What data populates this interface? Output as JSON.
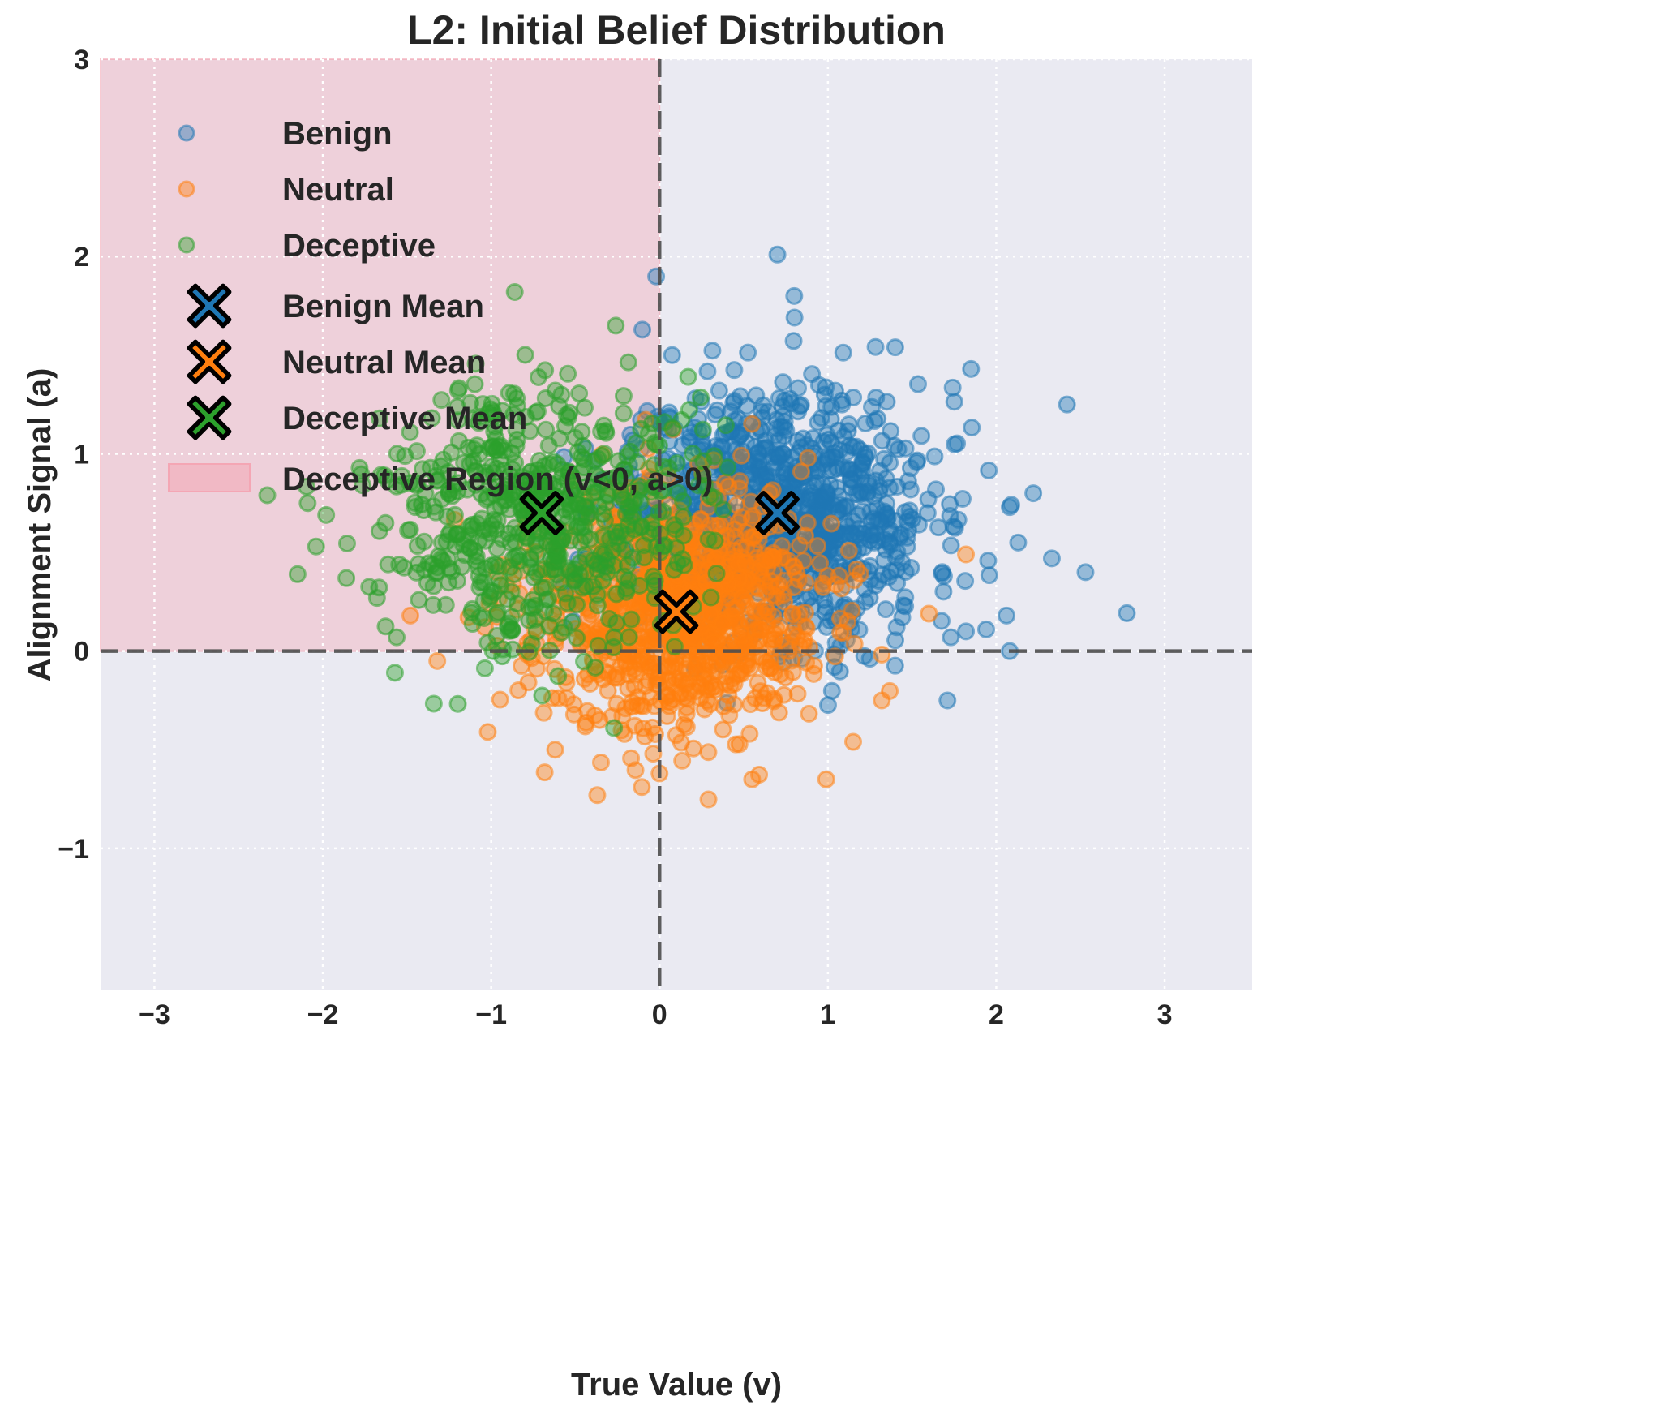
{
  "chart_data": {
    "type": "scatter",
    "title": "L2: Initial Belief Distribution",
    "xlabel": "True Value (v)",
    "ylabel": "Alignment Signal (a)",
    "xlim": [
      -3.32,
      3.52
    ],
    "ylim": [
      -1.72,
      3.0
    ],
    "xticks": [
      -3,
      -2,
      -1,
      0,
      1,
      2,
      3
    ],
    "xtick_labels": [
      "−3",
      "−2",
      "−1",
      "0",
      "1",
      "2",
      "3"
    ],
    "yticks": [
      -1,
      0,
      1,
      2,
      3
    ],
    "ytick_labels": [
      "−1",
      "0",
      "1",
      "2",
      "3"
    ],
    "grid": true,
    "legend_position": "top-left",
    "reference_lines": [
      {
        "axis": "x",
        "value": 0,
        "style": "dashed"
      },
      {
        "axis": "y",
        "value": 0,
        "style": "dashed"
      }
    ],
    "shaded_region": {
      "label": "Deceptive Region (v<0, a>0)",
      "x_range": [
        -3.32,
        0
      ],
      "y_range": [
        0,
        3.0
      ],
      "color": "#f4a6b4"
    },
    "series": [
      {
        "name": "Benign",
        "color": "#1f77b4",
        "count": 1000,
        "center": [
          0.7,
          0.7
        ],
        "spread": [
          0.45,
          0.32
        ],
        "seed": 11,
        "outliers": [
          [
            0.7,
            2.01
          ],
          [
            0.8,
            1.8
          ],
          [
            1.4,
            1.54
          ],
          [
            1.85,
            1.43
          ],
          [
            2.42,
            1.25
          ],
          [
            2.53,
            0.4
          ],
          [
            2.33,
            0.47
          ],
          [
            2.08,
            0.73
          ],
          [
            2.22,
            0.8
          ],
          [
            2.13,
            0.55
          ],
          [
            1.94,
            0.11
          ],
          [
            2.08,
            0.0
          ],
          [
            1.71,
            -0.25
          ],
          [
            1.82,
            0.1
          ],
          [
            1.73,
            0.07
          ]
        ]
      },
      {
        "name": "Neutral",
        "color": "#ff7f0e",
        "count": 1000,
        "center": [
          0.1,
          0.2
        ],
        "spread": [
          0.42,
          0.3
        ],
        "seed": 23,
        "outliers": [
          [
            -0.37,
            -0.73
          ],
          [
            0.55,
            -0.65
          ],
          [
            0.99,
            -0.65
          ],
          [
            -0.62,
            -0.5
          ],
          [
            0.0,
            -0.62
          ],
          [
            1.15,
            -0.46
          ],
          [
            -1.02,
            -0.41
          ],
          [
            1.82,
            0.49
          ],
          [
            1.6,
            0.19
          ],
          [
            1.32,
            -0.25
          ],
          [
            -1.32,
            -0.05
          ],
          [
            -1.48,
            0.18
          ]
        ]
      },
      {
        "name": "Deceptive",
        "color": "#2ca02c",
        "count": 600,
        "center": [
          -0.7,
          0.7
        ],
        "spread": [
          0.45,
          0.33
        ],
        "seed": 37,
        "outliers": [
          [
            -0.86,
            1.82
          ],
          [
            -0.26,
            1.65
          ],
          [
            -2.33,
            0.79
          ],
          [
            -2.09,
            0.75
          ],
          [
            -1.98,
            0.69
          ],
          [
            -2.15,
            0.39
          ],
          [
            -1.86,
            0.37
          ],
          [
            -2.04,
            0.53
          ],
          [
            0.17,
            1.39
          ],
          [
            -0.27,
            -0.39
          ],
          [
            -0.99,
            0.0
          ]
        ]
      }
    ],
    "means": [
      {
        "name": "Benign Mean",
        "x": 0.7,
        "y": 0.7,
        "color": "#1f77b4"
      },
      {
        "name": "Neutral Mean",
        "x": 0.1,
        "y": 0.2,
        "color": "#ff7f0e"
      },
      {
        "name": "Deceptive Mean",
        "x": -0.7,
        "y": 0.7,
        "color": "#2ca02c"
      }
    ],
    "legend": [
      "Benign",
      "Neutral",
      "Deceptive",
      "Benign Mean",
      "Neutral Mean",
      "Deceptive Mean",
      "Deceptive Region (v<0, a>0)"
    ],
    "style": {
      "plot_background": "#eaeaf2",
      "grid_color": "#ffffff",
      "refline_color": "#4d4d4d",
      "text_color": "#262626"
    }
  }
}
